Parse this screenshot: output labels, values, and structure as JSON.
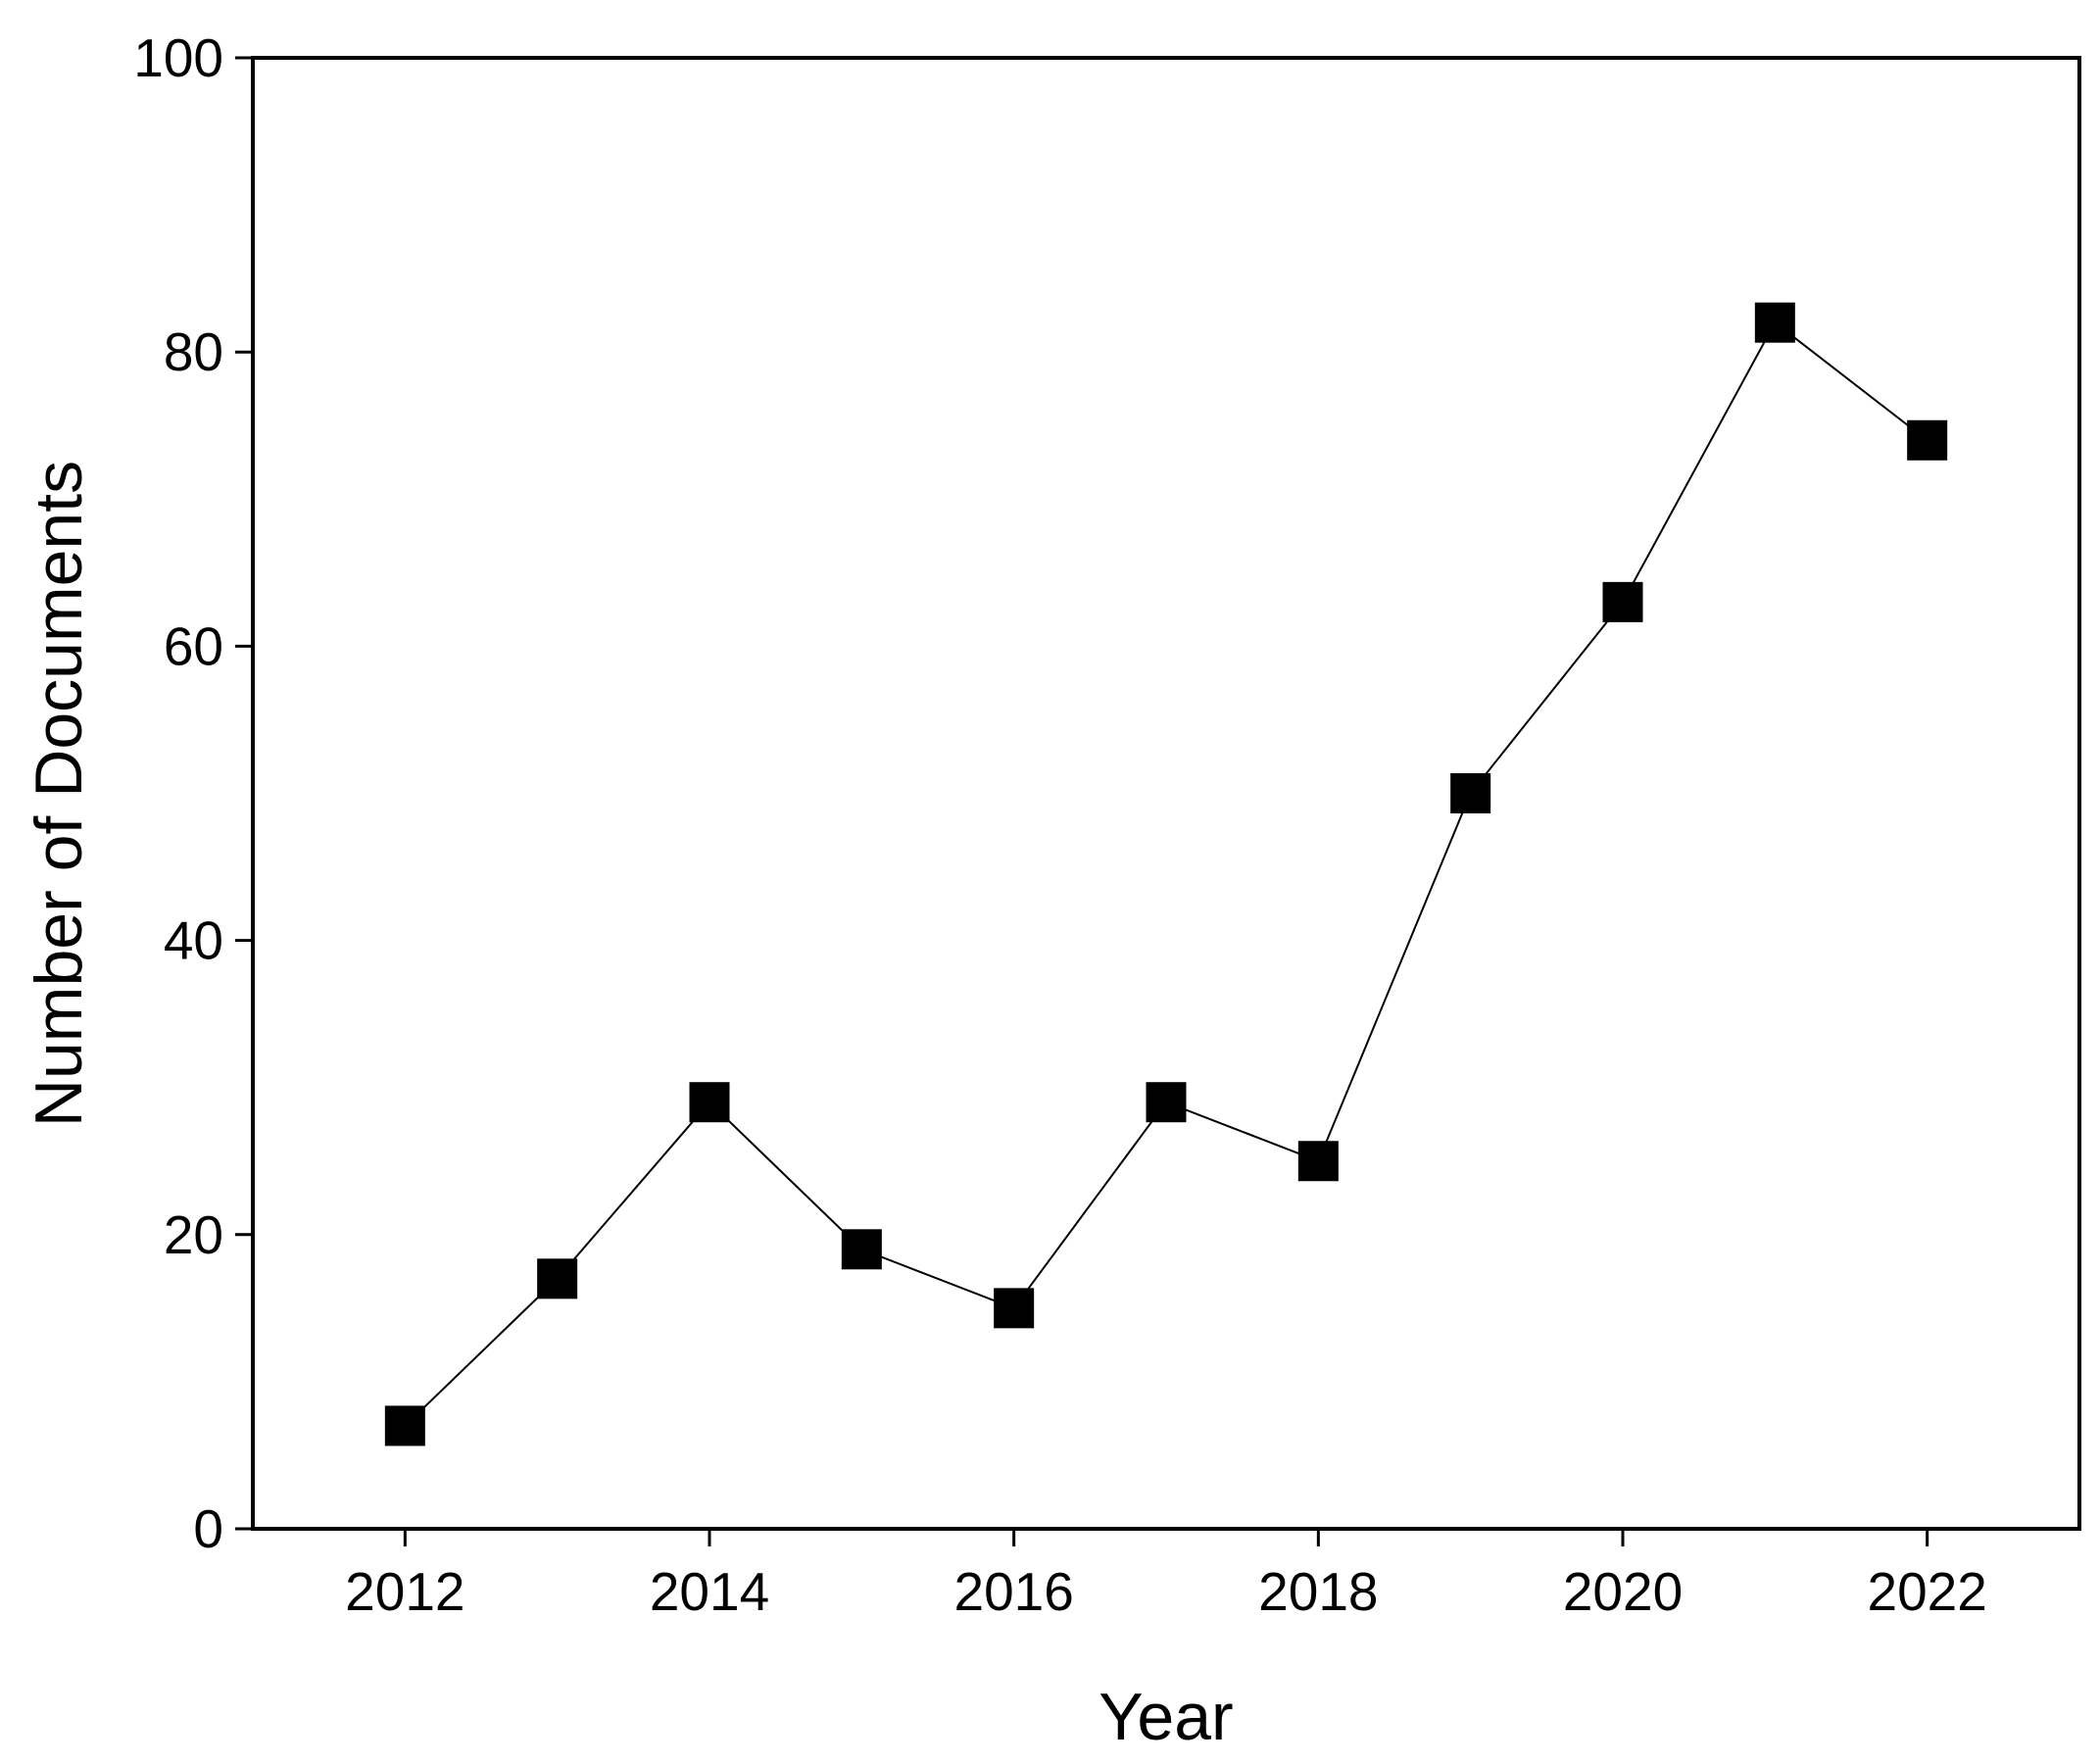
{
  "chart_data": {
    "type": "line",
    "x_label": "Year",
    "y_label": "Number of Documents",
    "x": [
      2012,
      2013,
      2014,
      2015,
      2016,
      2017,
      2018,
      2019,
      2020,
      2021,
      2022
    ],
    "series": [
      {
        "color": "#000000",
        "values": [
          7,
          17,
          29,
          19,
          15,
          29,
          25,
          50,
          63,
          82,
          74
        ]
      }
    ],
    "xlim": [
      2011,
      2023
    ],
    "xticks": [
      2012,
      2014,
      2016,
      2018,
      2020,
      2022
    ],
    "ylim": [
      0,
      100
    ],
    "yticks": [
      0,
      20,
      40,
      60,
      80,
      100
    ],
    "grid": false,
    "marker": "square"
  }
}
